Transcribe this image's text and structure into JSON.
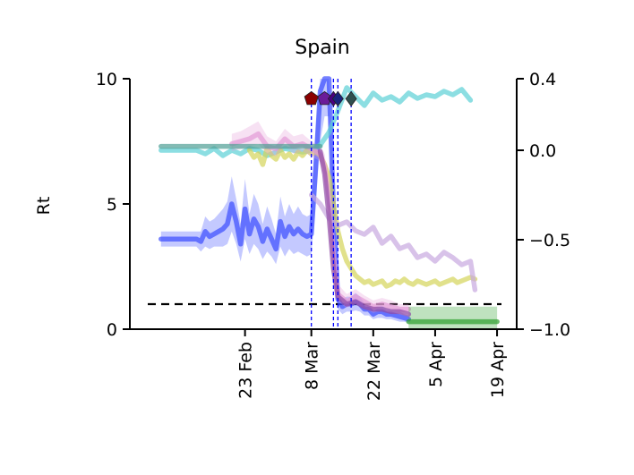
{
  "chart_data": {
    "type": "line",
    "title": "Spain",
    "ylabel": "Rt",
    "xlabel": "",
    "x_tick_labels": [
      "23 Feb",
      "8 Mar",
      "22 Mar",
      "5 Apr",
      "19 Apr"
    ],
    "x_tick_days": [
      23,
      38,
      52,
      66,
      80
    ],
    "xlim": [
      1,
      81
    ],
    "ylim": [
      0,
      10
    ],
    "y_ticks": [
      "0",
      "5",
      "10"
    ],
    "y2lim": [
      -1.0,
      0.4
    ],
    "y2_ticks": [
      "−1.0",
      "−0.5",
      "0.0",
      "0.4"
    ],
    "y2_tick_values": [
      -1.0,
      -0.5,
      0.0,
      0.4
    ],
    "reference_line": {
      "y": 1,
      "style": "dashed",
      "color": "#000000"
    },
    "event_lines": [
      {
        "x": 38,
        "color": "#0000ff"
      },
      {
        "x": 43,
        "color": "#0000ff"
      },
      {
        "x": 44,
        "color": "#0000ff"
      },
      {
        "x": 47,
        "color": "#0000ff"
      }
    ],
    "event_markers": [
      {
        "x": 38,
        "y": 9.2,
        "color": "#8b0000",
        "shape": "pentagon"
      },
      {
        "x": 41,
        "y": 9.2,
        "color": "#6a1b9a",
        "shape": "pentagon"
      },
      {
        "x": 43,
        "y": 9.2,
        "color": "#4b0082",
        "shape": "diamond"
      },
      {
        "x": 44,
        "y": 9.2,
        "color": "#1a237e",
        "shape": "diamond"
      },
      {
        "x": 47,
        "y": 9.2,
        "color": "#2f4f4f",
        "shape": "diamond"
      }
    ],
    "series": [
      {
        "color": "#3b4cff",
        "axis": "left",
        "band": true,
        "x": [
          4,
          6,
          8,
          10,
          12,
          13,
          14,
          15,
          16,
          17,
          18,
          19,
          20,
          21,
          22,
          23,
          24,
          25,
          26,
          27,
          28,
          29,
          30,
          31,
          32,
          33,
          34,
          35,
          36,
          37,
          38,
          39,
          40,
          41,
          42,
          43,
          44,
          45,
          46,
          47,
          48,
          49,
          50,
          51,
          52,
          53,
          54,
          55,
          56,
          57,
          58,
          59,
          60
        ],
        "y": [
          3.6,
          3.6,
          3.6,
          3.6,
          3.6,
          3.5,
          3.9,
          3.7,
          3.8,
          3.9,
          4.0,
          4.2,
          5.0,
          4.3,
          3.4,
          4.8,
          3.8,
          4.4,
          4.1,
          3.5,
          4.0,
          3.6,
          3.2,
          4.3,
          3.7,
          4.1,
          3.8,
          4.0,
          3.8,
          3.7,
          3.8,
          6.5,
          9.5,
          10.0,
          10.0,
          4.8,
          1.2,
          0.9,
          1.0,
          1.0,
          1.1,
          1.0,
          0.8,
          0.8,
          0.6,
          0.7,
          0.7,
          0.6,
          0.6,
          0.55,
          0.5,
          0.45,
          0.4
        ],
        "lower": [
          3.3,
          3.3,
          3.3,
          3.3,
          3.3,
          3.1,
          3.3,
          3.2,
          3.3,
          3.3,
          3.3,
          3.4,
          3.9,
          3.4,
          2.7,
          3.6,
          3.0,
          3.4,
          3.2,
          2.8,
          3.1,
          2.9,
          2.6,
          3.3,
          2.9,
          3.2,
          3.0,
          3.1,
          3.0,
          2.9,
          3.0,
          5.0,
          7.5,
          8.5,
          8.5,
          3.5,
          0.8,
          0.6,
          0.7,
          0.7,
          0.75,
          0.7,
          0.55,
          0.55,
          0.4,
          0.45,
          0.45,
          0.4,
          0.4,
          0.35,
          0.3,
          0.3,
          0.25
        ],
        "upper": [
          3.9,
          3.9,
          3.9,
          3.9,
          3.9,
          3.9,
          4.5,
          4.3,
          4.4,
          4.6,
          4.8,
          5.1,
          6.1,
          5.2,
          4.2,
          6.0,
          4.6,
          5.4,
          5.0,
          4.2,
          4.9,
          4.4,
          3.8,
          5.3,
          4.5,
          5.0,
          4.6,
          4.9,
          4.6,
          4.5,
          4.6,
          8.0,
          10.0,
          10.0,
          10.0,
          6.1,
          1.6,
          1.2,
          1.3,
          1.3,
          1.45,
          1.3,
          1.05,
          1.05,
          0.8,
          0.95,
          0.95,
          0.8,
          0.8,
          0.75,
          0.7,
          0.6,
          0.55
        ]
      },
      {
        "color": "#5bd0d6",
        "axis": "right",
        "x": [
          4,
          6,
          8,
          10,
          12,
          14,
          16,
          18,
          20,
          22,
          24,
          26,
          28,
          30,
          32,
          34,
          36,
          38,
          40,
          42,
          44,
          46,
          48,
          50,
          52,
          54,
          56,
          58,
          60,
          62,
          64,
          66,
          68,
          70,
          72,
          74
        ],
        "y": [
          0.0,
          0.0,
          0.0,
          0.0,
          0.0,
          -0.02,
          0.01,
          -0.03,
          0.0,
          -0.02,
          0.01,
          0.0,
          -0.03,
          -0.01,
          0.01,
          0.0,
          -0.01,
          0.0,
          0.03,
          0.1,
          0.22,
          0.35,
          0.3,
          0.25,
          0.32,
          0.28,
          0.3,
          0.27,
          0.32,
          0.29,
          0.31,
          0.3,
          0.33,
          0.31,
          0.34,
          0.28
        ]
      },
      {
        "color": "#d4d45a",
        "axis": "right",
        "x": [
          24,
          25,
          26,
          27,
          28,
          29,
          30,
          31,
          32,
          33,
          34,
          35,
          36,
          37,
          38,
          39,
          40,
          41,
          42,
          43,
          44,
          45,
          46,
          47,
          48,
          49,
          50,
          51,
          52,
          53,
          54,
          55,
          56,
          57,
          58,
          59,
          60,
          61,
          62,
          63,
          64,
          65,
          66,
          67,
          68,
          69,
          70,
          71,
          72,
          73,
          74,
          75
        ],
        "y": [
          0.0,
          -0.04,
          -0.02,
          -0.08,
          0.01,
          -0.03,
          -0.05,
          0.0,
          -0.04,
          -0.02,
          -0.05,
          -0.01,
          -0.03,
          0.0,
          -0.02,
          -0.01,
          -0.03,
          -0.08,
          -0.15,
          -0.3,
          -0.45,
          -0.55,
          -0.62,
          -0.66,
          -0.7,
          -0.72,
          -0.74,
          -0.73,
          -0.75,
          -0.74,
          -0.73,
          -0.76,
          -0.75,
          -0.73,
          -0.74,
          -0.72,
          -0.74,
          -0.75,
          -0.73,
          -0.74,
          -0.75,
          -0.74,
          -0.73,
          -0.75,
          -0.74,
          -0.73,
          -0.72,
          -0.74,
          -0.73,
          -0.72,
          -0.71,
          -0.72
        ]
      },
      {
        "color": "#e39ad6",
        "axis": "left",
        "band": true,
        "x": [
          20,
          22,
          24,
          26,
          28,
          30,
          32,
          34,
          36,
          38,
          40,
          41,
          42,
          43,
          44,
          46,
          48,
          50,
          52,
          54,
          56,
          58,
          60
        ],
        "y": [
          7.4,
          7.5,
          7.6,
          7.8,
          7.3,
          7.2,
          7.6,
          7.3,
          7.4,
          7.2,
          7.0,
          6.5,
          5.2,
          3.0,
          1.4,
          1.1,
          1.3,
          1.1,
          0.9,
          1.0,
          0.9,
          0.8,
          0.8
        ],
        "lower": [
          7.1,
          7.2,
          7.3,
          7.4,
          7.0,
          6.9,
          7.3,
          7.0,
          7.1,
          6.9,
          6.7,
          6.1,
          4.8,
          2.6,
          1.1,
          0.85,
          1.0,
          0.85,
          0.65,
          0.75,
          0.65,
          0.6,
          0.6
        ],
        "upper": [
          7.8,
          7.9,
          8.1,
          8.3,
          7.7,
          7.5,
          8.0,
          7.7,
          7.8,
          7.5,
          7.3,
          7.0,
          5.7,
          3.5,
          1.8,
          1.4,
          1.6,
          1.35,
          1.15,
          1.25,
          1.15,
          1.0,
          1.0
        ]
      },
      {
        "color": "#c8a8e0",
        "axis": "right",
        "x": [
          38,
          40,
          42,
          44,
          46,
          48,
          50,
          52,
          54,
          56,
          58,
          60,
          62,
          64,
          66,
          68,
          70,
          72,
          74,
          75
        ],
        "y": [
          -0.25,
          -0.3,
          -0.38,
          -0.42,
          -0.4,
          -0.45,
          -0.47,
          -0.43,
          -0.52,
          -0.48,
          -0.55,
          -0.53,
          -0.6,
          -0.58,
          -0.62,
          -0.57,
          -0.6,
          -0.64,
          -0.62,
          -0.78
        ]
      },
      {
        "color": "#4f9e94",
        "axis": "left",
        "x": [
          4,
          6,
          8,
          10,
          12,
          14,
          16,
          18,
          20,
          22,
          24,
          26,
          28,
          30,
          32,
          34,
          36,
          38,
          40
        ],
        "y": [
          7.3,
          7.3,
          7.3,
          7.3,
          7.3,
          7.3,
          7.3,
          7.3,
          7.3,
          7.3,
          7.3,
          7.3,
          7.3,
          7.3,
          7.3,
          7.3,
          7.3,
          7.3,
          7.3
        ]
      },
      {
        "color": "#2ca02c",
        "axis": "left",
        "band": true,
        "x": [
          60,
          62,
          64,
          66,
          68,
          70,
          72,
          74,
          76,
          78,
          80
        ],
        "y": [
          0.3,
          0.3,
          0.3,
          0.3,
          0.3,
          0.3,
          0.3,
          0.3,
          0.3,
          0.3,
          0.3
        ],
        "lower": [
          0.0,
          0.0,
          0.0,
          0.0,
          0.0,
          0.0,
          0.0,
          0.0,
          0.0,
          0.0,
          0.0
        ],
        "upper": [
          0.9,
          0.9,
          0.9,
          0.9,
          0.9,
          0.9,
          0.9,
          0.9,
          0.9,
          0.9,
          0.9
        ]
      },
      {
        "color": "#8e4aa5",
        "axis": "left",
        "x": [
          40,
          41,
          42,
          43,
          44,
          46,
          48,
          50,
          52,
          54,
          56,
          58,
          60
        ],
        "y": [
          7.1,
          6.2,
          4.5,
          2.4,
          1.3,
          1.0,
          1.1,
          0.9,
          0.8,
          0.8,
          0.7,
          0.7,
          0.6
        ]
      }
    ]
  }
}
